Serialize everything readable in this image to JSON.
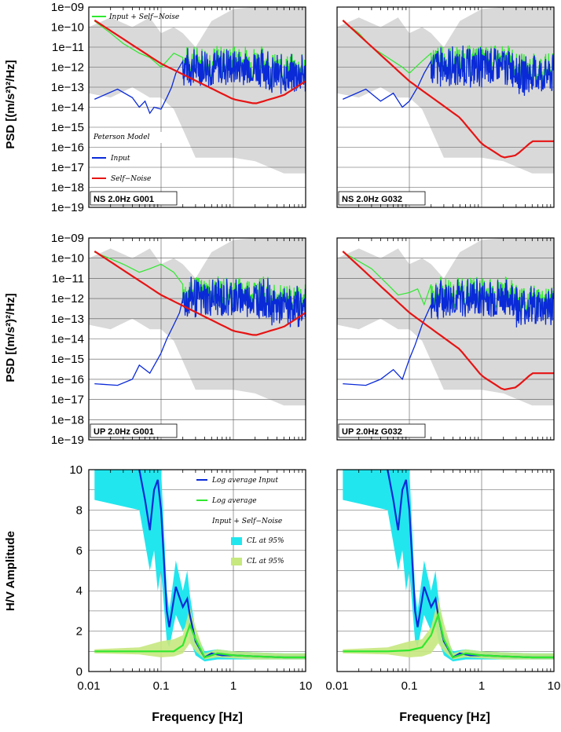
{
  "colors": {
    "background": "#ffffff",
    "peterson_band": "#d9d9d9",
    "input": "#0a2ad8",
    "input_plus_self_noise": "#2fe82f",
    "self_noise": "#e61414",
    "ci_input": "#22e6ee",
    "ci_combined": "#c6e87e",
    "grid": "#555555",
    "axis": "#000000"
  },
  "figure": {
    "psd_ylabel": "PSD [(m/s²)²/Hz]",
    "hv_ylabel": "H/V Amplitude",
    "xlabel": "Frequency [Hz]"
  },
  "legends": {
    "psd": {
      "combined": "Input + Self−Noise",
      "peterson": "Peterson Model",
      "input": "Input",
      "self_noise": "Self−Noise"
    },
    "hv": {
      "input_avg": "Log average Input",
      "combined_avg": "Log average",
      "combined_title": "Input + Self−Noise",
      "ci_input": "CL at 95%",
      "ci_combined": "CL at 95%"
    }
  },
  "chart_data": [
    {
      "type": "line",
      "panel": "psd",
      "station_label": "NS 2.0Hz G001",
      "x_scale": "log",
      "y_scale": "log",
      "xlim": [
        0.01,
        10
      ],
      "ylim": [
        1e-19,
        1e-09
      ],
      "x_ticks": [
        "0.01",
        "0.1",
        "1",
        "10"
      ],
      "y_ticks": [
        "1e−19",
        "1e−18",
        "1e−17",
        "1e−16",
        "1e−15",
        "1e−14",
        "1e−13",
        "1e−12",
        "1e−11",
        "1e−10",
        "1e−09"
      ],
      "grid": true,
      "legend": "top-left, bottom-left",
      "peterson_band": {
        "x": [
          0.01,
          0.02,
          0.04,
          0.07,
          0.1,
          0.15,
          0.2,
          0.3,
          0.5,
          1,
          2,
          5,
          10
        ],
        "low": [
          5e-14,
          3e-14,
          1e-13,
          3e-14,
          3e-14,
          8e-15,
          8e-16,
          3e-17,
          3e-17,
          3e-17,
          2e-17,
          5e-18,
          5e-18
        ],
        "high": [
          1e-10,
          3e-10,
          1e-10,
          3e-10,
          5e-11,
          1e-10,
          5e-11,
          1e-11,
          2e-10,
          8e-10,
          1e-09,
          1e-09,
          1e-09
        ]
      },
      "series": [
        {
          "name": "Self−Noise",
          "x": [
            0.012,
            0.1,
            1,
            2,
            5,
            10
          ],
          "y": [
            2.2e-10,
            1.5e-12,
            2.5e-14,
            1.5e-14,
            4e-14,
            2e-13
          ]
        },
        {
          "name": "Input",
          "x": [
            0.012,
            0.025,
            0.04,
            0.05,
            0.06,
            0.07,
            0.08,
            0.1,
            0.12,
            0.14,
            0.16,
            0.2
          ],
          "y": [
            2.5e-14,
            8e-14,
            3e-14,
            1e-14,
            2e-14,
            5e-15,
            1e-14,
            8e-15,
            3e-14,
            1e-13,
            5e-13,
            2e-12
          ]
        },
        {
          "name": "Input + Self−Noise",
          "x": [
            0.012,
            0.02,
            0.03,
            0.05,
            0.07,
            0.1,
            0.12,
            0.15,
            0.2
          ],
          "y": [
            2e-10,
            5e-11,
            1.5e-11,
            5e-12,
            3e-12,
            1e-12,
            2e-12,
            5e-12,
            3e-12
          ]
        }
      ]
    },
    {
      "type": "line",
      "panel": "psd",
      "station_label": "NS 2.0Hz G032",
      "x_scale": "log",
      "y_scale": "log",
      "xlim": [
        0.01,
        10
      ],
      "ylim": [
        1e-19,
        1e-09
      ],
      "grid": true,
      "peterson_band": {
        "x": [
          0.01,
          0.02,
          0.04,
          0.07,
          0.1,
          0.15,
          0.2,
          0.3,
          0.5,
          1,
          2,
          5,
          10
        ],
        "low": [
          5e-14,
          3e-14,
          1e-13,
          3e-14,
          3e-14,
          8e-15,
          8e-16,
          3e-17,
          3e-17,
          3e-17,
          2e-17,
          5e-18,
          5e-18
        ],
        "high": [
          1e-10,
          3e-10,
          1e-10,
          3e-10,
          5e-11,
          1e-10,
          5e-11,
          1e-11,
          2e-10,
          8e-10,
          1e-09,
          1e-09,
          1e-09
        ]
      },
      "series": [
        {
          "name": "Self−Noise",
          "x": [
            0.012,
            0.1,
            0.5,
            1,
            2,
            3,
            5,
            10
          ],
          "y": [
            2.2e-10,
            2e-13,
            3e-15,
            1.5e-16,
            3e-17,
            4e-17,
            2e-16,
            2e-16
          ]
        },
        {
          "name": "Input",
          "x": [
            0.012,
            0.025,
            0.04,
            0.06,
            0.08,
            0.1,
            0.13,
            0.16,
            0.2
          ],
          "y": [
            2.5e-14,
            8e-14,
            2e-14,
            5e-14,
            1e-14,
            2e-14,
            1e-13,
            5e-13,
            2e-12
          ]
        },
        {
          "name": "Input + Self−Noise",
          "x": [
            0.012,
            0.02,
            0.03,
            0.05,
            0.08,
            0.1,
            0.15,
            0.2
          ],
          "y": [
            2e-10,
            5e-11,
            1e-11,
            3e-12,
            1e-12,
            5e-13,
            2e-12,
            5e-12
          ]
        }
      ]
    },
    {
      "type": "line",
      "panel": "psd",
      "station_label": "UP 2.0Hz G001",
      "x_scale": "log",
      "y_scale": "log",
      "xlim": [
        0.01,
        10
      ],
      "ylim": [
        1e-19,
        1e-09
      ],
      "grid": true,
      "peterson_band": {
        "x": [
          0.01,
          0.02,
          0.04,
          0.07,
          0.1,
          0.15,
          0.2,
          0.3,
          0.5,
          1,
          2,
          5,
          10
        ],
        "low": [
          5e-14,
          3e-14,
          1e-13,
          3e-14,
          3e-14,
          8e-15,
          8e-16,
          3e-17,
          3e-17,
          3e-17,
          2e-17,
          5e-18,
          5e-18
        ],
        "high": [
          1e-10,
          3e-10,
          1e-10,
          3e-10,
          5e-11,
          1e-10,
          5e-11,
          1e-11,
          2e-10,
          8e-10,
          1e-09,
          1e-09,
          1e-09
        ]
      },
      "series": [
        {
          "name": "Self−Noise",
          "x": [
            0.012,
            0.1,
            1,
            2,
            5,
            10
          ],
          "y": [
            2.2e-10,
            1.5e-12,
            2.5e-14,
            1.5e-14,
            4e-14,
            2e-13
          ]
        },
        {
          "name": "Input",
          "x": [
            0.012,
            0.025,
            0.04,
            0.05,
            0.07,
            0.09,
            0.1,
            0.12,
            0.15,
            0.18,
            0.2
          ],
          "y": [
            6e-17,
            5e-17,
            1e-16,
            5e-16,
            2e-16,
            1e-15,
            2e-15,
            1e-14,
            5e-14,
            2e-13,
            1e-12
          ]
        },
        {
          "name": "Input + Self−Noise",
          "x": [
            0.012,
            0.03,
            0.05,
            0.07,
            0.1,
            0.15,
            0.2
          ],
          "y": [
            2e-10,
            5e-11,
            2e-11,
            3e-11,
            5e-11,
            2e-11,
            5e-12
          ]
        }
      ]
    },
    {
      "type": "line",
      "panel": "psd",
      "station_label": "UP 2.0Hz G032",
      "x_scale": "log",
      "y_scale": "log",
      "xlim": [
        0.01,
        10
      ],
      "ylim": [
        1e-19,
        1e-09
      ],
      "grid": true,
      "peterson_band": {
        "x": [
          0.01,
          0.02,
          0.04,
          0.07,
          0.1,
          0.15,
          0.2,
          0.3,
          0.5,
          1,
          2,
          5,
          10
        ],
        "low": [
          5e-14,
          3e-14,
          1e-13,
          3e-14,
          3e-14,
          8e-15,
          8e-16,
          3e-17,
          3e-17,
          3e-17,
          2e-17,
          5e-18,
          5e-18
        ],
        "high": [
          1e-10,
          3e-10,
          1e-10,
          3e-10,
          5e-11,
          1e-10,
          5e-11,
          1e-11,
          2e-10,
          8e-10,
          1e-09,
          1e-09,
          1e-09
        ]
      },
      "series": [
        {
          "name": "Self−Noise",
          "x": [
            0.012,
            0.1,
            0.5,
            1,
            2,
            3,
            5,
            10
          ],
          "y": [
            2.2e-10,
            2e-13,
            3e-15,
            1.5e-16,
            3e-17,
            4e-17,
            2e-16,
            2e-16
          ]
        },
        {
          "name": "Input",
          "x": [
            0.012,
            0.025,
            0.04,
            0.06,
            0.08,
            0.1,
            0.12,
            0.15,
            0.2
          ],
          "y": [
            6e-17,
            5e-17,
            1e-16,
            3e-16,
            1e-16,
            1e-15,
            5e-15,
            5e-14,
            5e-13
          ]
        },
        {
          "name": "Input + Self−Noise",
          "x": [
            0.012,
            0.03,
            0.05,
            0.07,
            0.1,
            0.13,
            0.16,
            0.2
          ],
          "y": [
            2e-10,
            3e-11,
            5e-12,
            1.5e-12,
            2e-12,
            3e-12,
            5e-13,
            5e-12
          ]
        }
      ]
    },
    {
      "type": "line",
      "panel": "hv",
      "x_scale": "log",
      "xlim": [
        0.01,
        10
      ],
      "ylim": [
        0,
        10
      ],
      "x_ticks": [
        "0.01",
        "0.1",
        "1",
        "10"
      ],
      "y_ticks": [
        "0",
        "2",
        "4",
        "6",
        "8",
        "10"
      ],
      "grid": true,
      "legend": "top-right",
      "series": [
        {
          "name": "Log average Input",
          "x": [
            0.05,
            0.06,
            0.07,
            0.08,
            0.09,
            0.1,
            0.12,
            0.13,
            0.16,
            0.2,
            0.23,
            0.25,
            0.3,
            0.4,
            0.5,
            0.7,
            1,
            2,
            5,
            10
          ],
          "y": [
            10,
            8.5,
            7,
            9,
            9.5,
            8,
            3,
            2.2,
            4.2,
            3.2,
            3.6,
            2.8,
            1.5,
            0.7,
            0.9,
            0.8,
            0.8,
            0.75,
            0.7,
            0.7
          ]
        },
        {
          "name": "Log average",
          "x": [
            0.012,
            0.02,
            0.05,
            0.1,
            0.15,
            0.2,
            0.25,
            0.3,
            0.4,
            0.6,
            1,
            2,
            5,
            10
          ],
          "y": [
            1,
            1,
            1,
            1,
            1,
            1.3,
            2.3,
            1.6,
            0.7,
            0.9,
            0.8,
            0.75,
            0.7,
            0.7
          ]
        }
      ],
      "ci": [
        {
          "name": "CL at 95%",
          "x": [
            0.012,
            0.05,
            0.07,
            0.08,
            0.09,
            0.1,
            0.12,
            0.13,
            0.16,
            0.2,
            0.23,
            0.25,
            0.3,
            0.4,
            0.6,
            1,
            2,
            5,
            10
          ],
          "low": [
            8.5,
            8,
            5,
            6,
            4,
            5,
            1.5,
            1.2,
            2.8,
            2,
            2.4,
            1.6,
            0.8,
            0.5,
            0.6,
            0.6,
            0.6,
            0.6,
            0.6
          ],
          "high": [
            10,
            10,
            10,
            10,
            10,
            10,
            4,
            3,
            5.5,
            4,
            5,
            3.8,
            2,
            1,
            1.1,
            1,
            0.95,
            0.9,
            0.9
          ]
        },
        {
          "name": "CL at 95%",
          "x": [
            0.012,
            0.05,
            0.1,
            0.15,
            0.2,
            0.25,
            0.3,
            0.4,
            0.6,
            1,
            2,
            5,
            10
          ],
          "low": [
            0.9,
            0.85,
            0.7,
            0.75,
            0.9,
            1.4,
            1.0,
            0.6,
            0.7,
            0.65,
            0.6,
            0.6,
            0.6
          ],
          "high": [
            1.1,
            1.2,
            1.5,
            1.6,
            1.8,
            3.2,
            2.2,
            0.9,
            1.1,
            1.0,
            0.95,
            0.9,
            0.9
          ]
        }
      ]
    },
    {
      "type": "line",
      "panel": "hv",
      "x_scale": "log",
      "xlim": [
        0.01,
        10
      ],
      "ylim": [
        0,
        10
      ],
      "grid": true,
      "series": [
        {
          "name": "Log average Input",
          "x": [
            0.05,
            0.06,
            0.07,
            0.08,
            0.09,
            0.1,
            0.12,
            0.13,
            0.16,
            0.2,
            0.23,
            0.25,
            0.3,
            0.4,
            0.5,
            0.7,
            1,
            2,
            5,
            10
          ],
          "y": [
            10,
            8.5,
            7,
            9,
            9.5,
            8,
            3,
            2.2,
            4.2,
            3.2,
            3.6,
            2.8,
            1.5,
            0.7,
            0.9,
            0.8,
            0.8,
            0.75,
            0.7,
            0.7
          ]
        },
        {
          "name": "Log average",
          "x": [
            0.012,
            0.02,
            0.05,
            0.1,
            0.15,
            0.2,
            0.25,
            0.3,
            0.4,
            0.6,
            1,
            2,
            5,
            10
          ],
          "y": [
            1,
            1,
            1,
            1.05,
            1.2,
            1.8,
            2.8,
            1.6,
            0.7,
            0.9,
            0.8,
            0.75,
            0.7,
            0.7
          ]
        }
      ],
      "ci": [
        {
          "name": "CL at 95%",
          "x": [
            0.012,
            0.05,
            0.07,
            0.08,
            0.09,
            0.1,
            0.12,
            0.13,
            0.16,
            0.2,
            0.23,
            0.25,
            0.3,
            0.4,
            0.6,
            1,
            2,
            5,
            10
          ],
          "low": [
            8.5,
            8,
            5,
            6,
            4,
            5,
            1.5,
            1.2,
            2.8,
            2,
            2.4,
            1.6,
            0.8,
            0.5,
            0.6,
            0.6,
            0.6,
            0.6,
            0.6
          ],
          "high": [
            10,
            10,
            10,
            10,
            10,
            10,
            4,
            3,
            5.5,
            4,
            5,
            3.8,
            2,
            1,
            1.1,
            1,
            0.95,
            0.9,
            0.9
          ]
        },
        {
          "name": "CL at 95%",
          "x": [
            0.012,
            0.05,
            0.1,
            0.15,
            0.2,
            0.25,
            0.3,
            0.4,
            0.6,
            1,
            2,
            5,
            10
          ],
          "low": [
            0.9,
            0.85,
            0.7,
            0.75,
            0.9,
            1.4,
            1.0,
            0.6,
            0.7,
            0.65,
            0.6,
            0.6,
            0.6
          ],
          "high": [
            1.1,
            1.2,
            1.5,
            1.6,
            2.2,
            3.6,
            2.4,
            0.9,
            1.1,
            1.0,
            0.95,
            0.9,
            0.9
          ]
        }
      ]
    }
  ]
}
